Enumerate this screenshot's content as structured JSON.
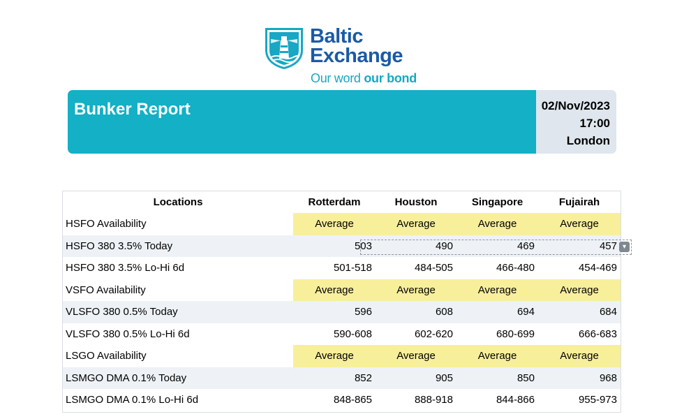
{
  "brand": {
    "name_line1": "Baltic",
    "name_line2": "Exchange",
    "tagline_regular": "Our word ",
    "tagline_bold": "our bond",
    "colors": {
      "navy": "#1b5aa6",
      "teal": "#13b0c6",
      "availability_yellow": "#f8ef9a",
      "row_shade": "#eef2f6",
      "meta_panel": "#dfe6ed"
    }
  },
  "banner": {
    "title": "Bunker Report",
    "date": "02/Nov/2023",
    "time": "17:00",
    "location": "London"
  },
  "table": {
    "headers": [
      "Locations",
      "Rotterdam",
      "Houston",
      "Singapore",
      "Fujairah"
    ],
    "rows": [
      {
        "label": "HSFO Availability",
        "type": "availability",
        "values": [
          "Average",
          "Average",
          "Average",
          "Average"
        ]
      },
      {
        "label": "HSFO 380 3.5% Today",
        "type": "price",
        "values": [
          "503",
          "490",
          "469",
          "457"
        ]
      },
      {
        "label": "HSFO 380 3.5% Lo-Hi 6d",
        "type": "range",
        "values": [
          "501-518",
          "484-505",
          "466-480",
          "454-469"
        ]
      },
      {
        "label": "VSFO Availability",
        "type": "availability",
        "values": [
          "Average",
          "Average",
          "Average",
          "Average"
        ]
      },
      {
        "label": "VLSFO 380 0.5% Today",
        "type": "price",
        "values": [
          "596",
          "608",
          "694",
          "684"
        ]
      },
      {
        "label": "VLSFO 380 0.5% Lo-Hi 6d",
        "type": "range",
        "values": [
          "590-608",
          "602-620",
          "680-699",
          "666-683"
        ]
      },
      {
        "label": "LSGO Availability",
        "type": "availability",
        "values": [
          "Average",
          "Average",
          "Average",
          "Average"
        ]
      },
      {
        "label": "LSMGO DMA 0.1% Today",
        "type": "price",
        "values": [
          "852",
          "905",
          "850",
          "968"
        ]
      },
      {
        "label": "LSMGO DMA 0.1% Lo-Hi 6d",
        "type": "range",
        "values": [
          "848-865",
          "888-918",
          "844-866",
          "955-973"
        ]
      }
    ]
  },
  "icons": {
    "logo": "lighthouse-shield-icon",
    "dropdown": "chevron-down-icon"
  }
}
